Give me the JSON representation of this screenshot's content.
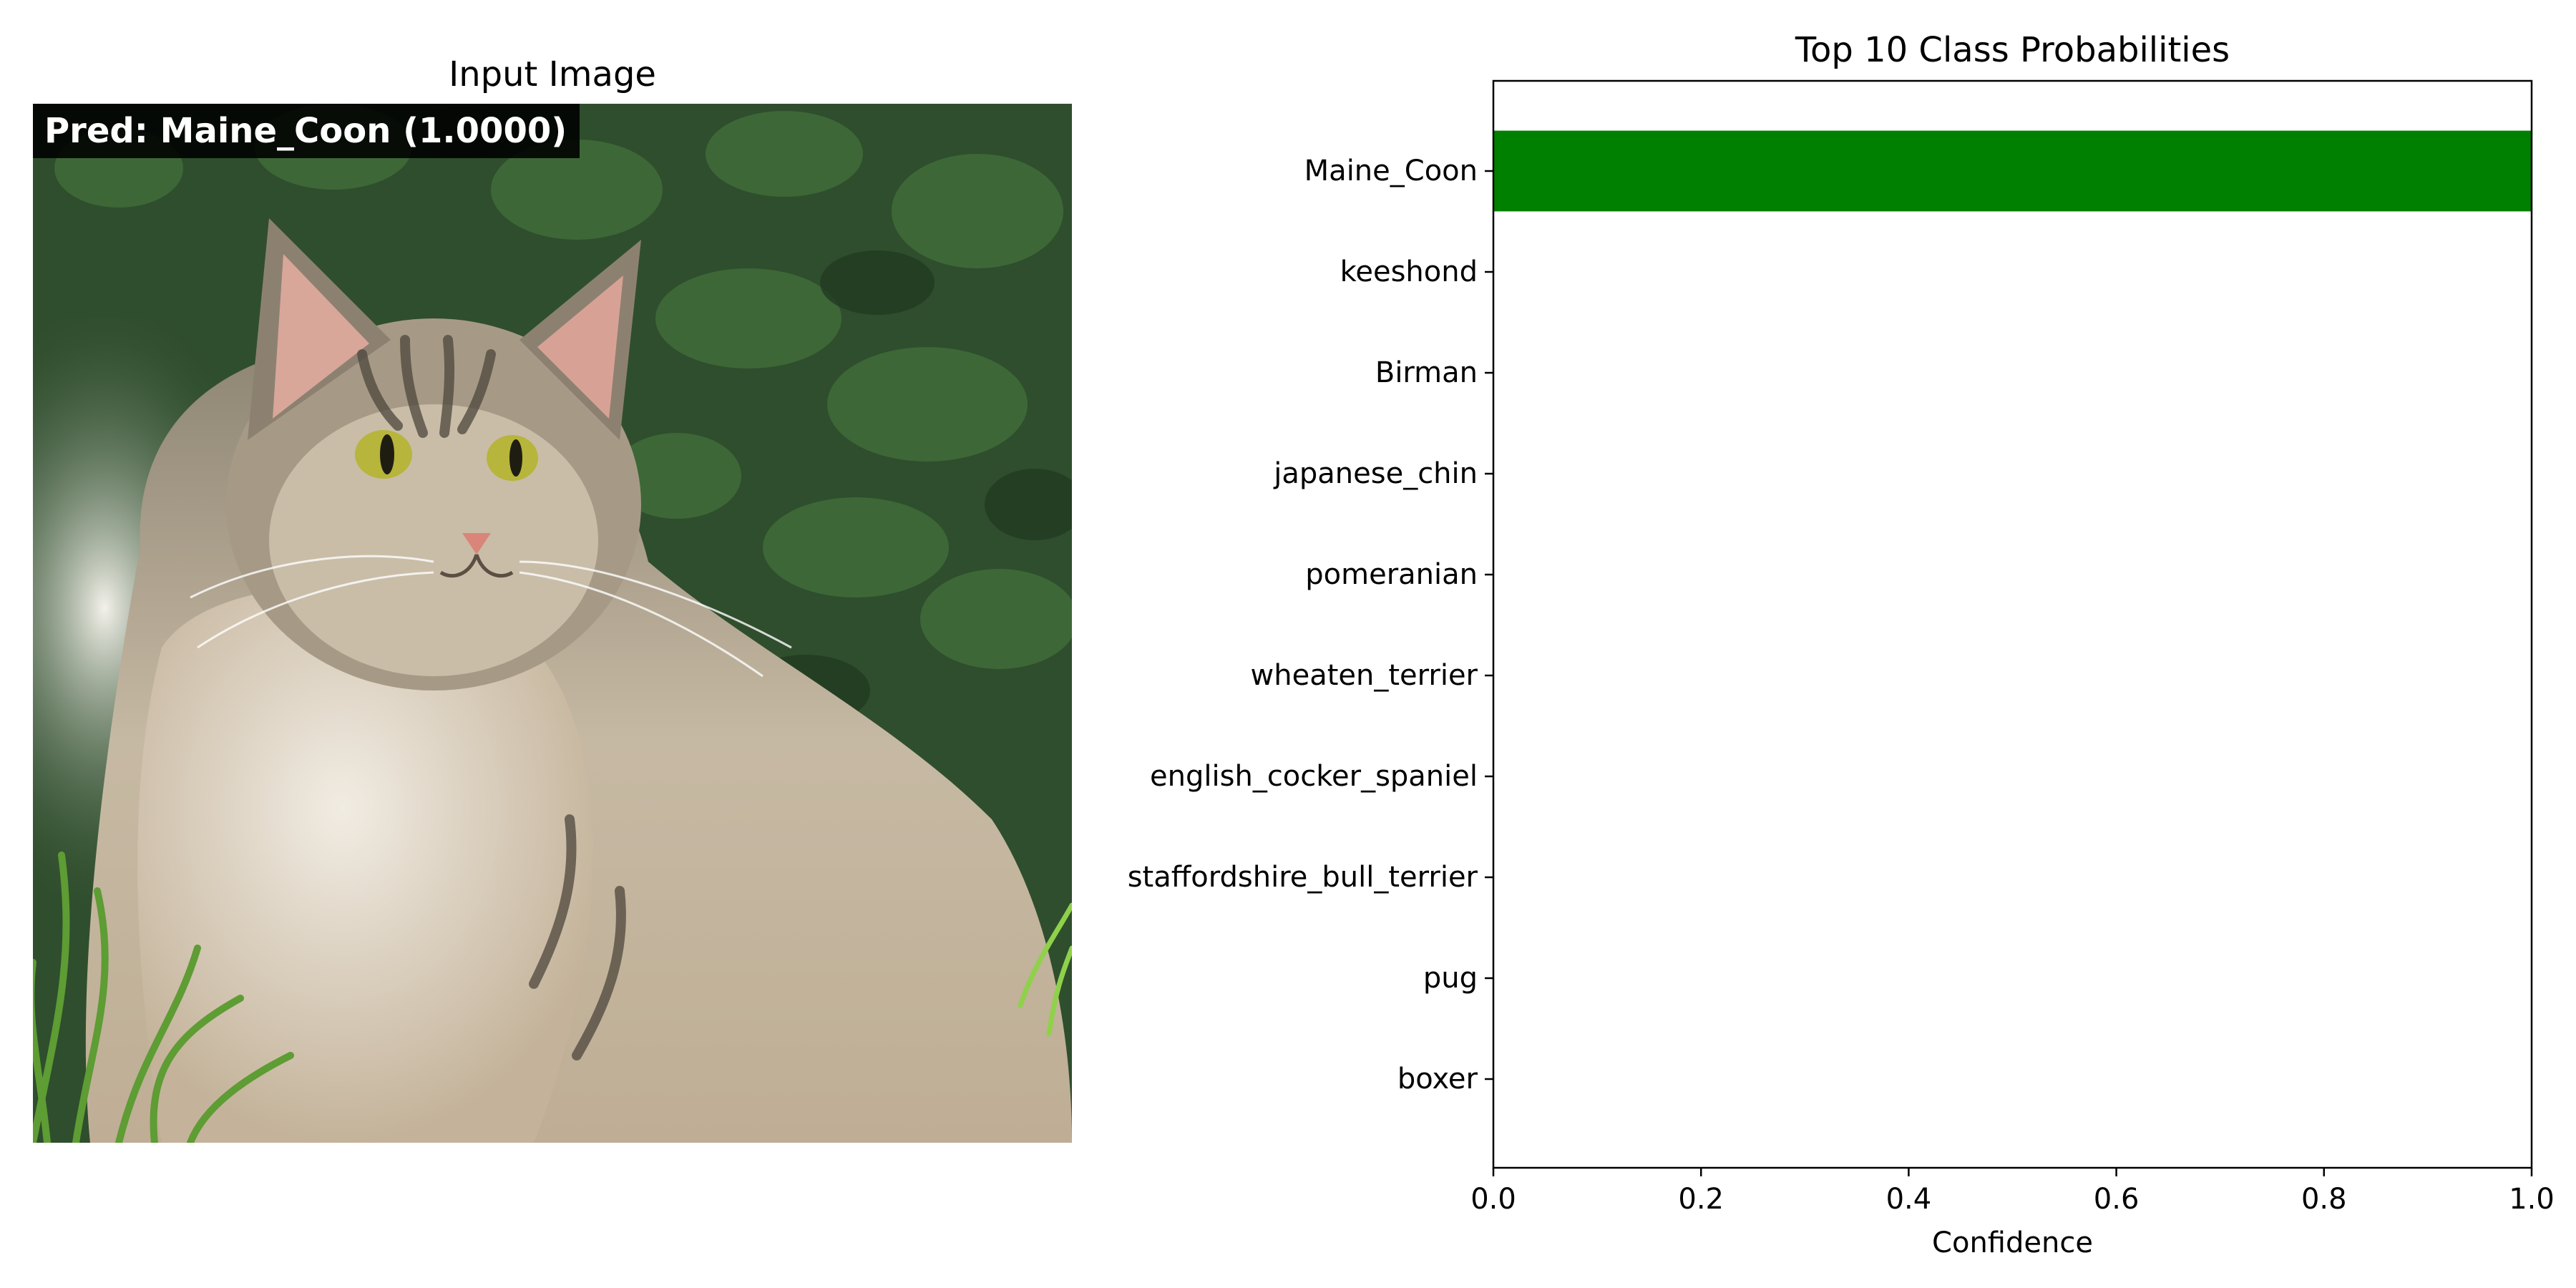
{
  "image_panel": {
    "title": "Input Image",
    "prediction_label": "Pred: Maine_Coon (1.0000)"
  },
  "chart_data": {
    "type": "bar",
    "orientation": "horizontal",
    "title": "Top 10 Class Probabilities",
    "xlabel": "Confidence",
    "ylabel": "",
    "categories": [
      "Maine_Coon",
      "keeshond",
      "Birman",
      "japanese_chin",
      "pomeranian",
      "wheaten_terrier",
      "english_cocker_spaniel",
      "staffordshire_bull_terrier",
      "pug",
      "boxer"
    ],
    "values": [
      1.0,
      0.0,
      0.0,
      0.0,
      0.0,
      0.0,
      0.0,
      0.0,
      0.0,
      0.0
    ],
    "xlim": [
      0,
      1.0
    ],
    "xticks": [
      "0.0",
      "0.2",
      "0.4",
      "0.6",
      "0.8",
      "1.0"
    ],
    "bar_colors": [
      "#008000",
      "#add8e6",
      "#add8e6",
      "#add8e6",
      "#add8e6",
      "#add8e6",
      "#add8e6",
      "#add8e6",
      "#add8e6",
      "#add8e6"
    ],
    "grid": false
  }
}
